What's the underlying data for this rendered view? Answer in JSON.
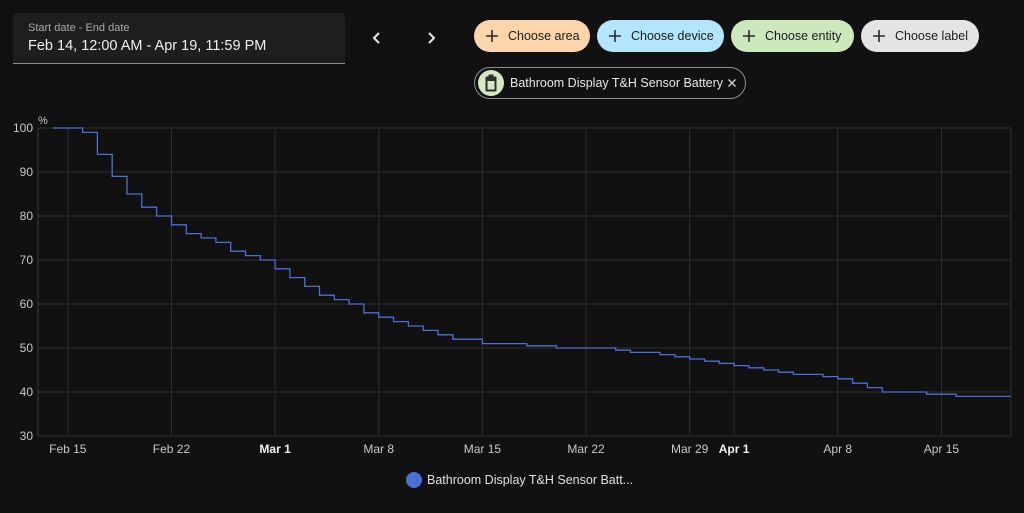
{
  "date_range": {
    "label": "Start date - End date",
    "value": "Feb 14, 12:00 AM - Apr 19, 11:59 PM"
  },
  "nav": {
    "prev_icon": "chevron-left-icon",
    "next_icon": "chevron-right-icon"
  },
  "chips": [
    {
      "label": "Choose area",
      "color": "#fdd5aa",
      "icon": "plus-icon"
    },
    {
      "label": "Choose device",
      "color": "#b3e5fc",
      "icon": "plus-icon"
    },
    {
      "label": "Choose entity",
      "color": "#cde8bc",
      "icon": "plus-icon"
    },
    {
      "label": "Choose label",
      "color": "#e4e4e4",
      "icon": "plus-icon"
    }
  ],
  "selected_entity": {
    "name": "Bathroom Display T&H Sensor Battery",
    "icon": "battery-icon",
    "remove_icon": "close-icon"
  },
  "chart_data": {
    "type": "line",
    "ylabel": "%",
    "ylim": [
      30,
      100
    ],
    "yticks": [
      30,
      40,
      50,
      60,
      70,
      80,
      90,
      100
    ],
    "x_start": "Feb 14",
    "x_end": "Apr 19",
    "xticks": [
      {
        "label": "Feb 15",
        "day": 1,
        "bold": false
      },
      {
        "label": "Feb 22",
        "day": 8,
        "bold": false
      },
      {
        "label": "Mar 1",
        "day": 15,
        "bold": true
      },
      {
        "label": "Mar 8",
        "day": 22,
        "bold": false
      },
      {
        "label": "Mar 15",
        "day": 29,
        "bold": false
      },
      {
        "label": "Mar 22",
        "day": 36,
        "bold": false
      },
      {
        "label": "Mar 29",
        "day": 43,
        "bold": false
      },
      {
        "label": "Apr 1",
        "day": 46,
        "bold": true
      },
      {
        "label": "Apr 8",
        "day": 53,
        "bold": false
      },
      {
        "label": "Apr 15",
        "day": 60,
        "bold": false
      }
    ],
    "grid": true,
    "line_color": "#4a6fd6",
    "series": [
      {
        "name": "Bathroom Display T&H Sensor Batt...",
        "x_days": [
          0,
          1,
          2,
          3,
          4,
          5,
          6,
          7,
          8,
          9,
          10,
          11,
          12,
          13,
          14,
          15,
          16,
          17,
          18,
          19,
          20,
          21,
          22,
          23,
          24,
          25,
          26,
          27,
          28,
          29,
          30,
          31,
          32,
          33,
          34,
          35,
          36,
          37,
          38,
          39,
          40,
          41,
          42,
          43,
          44,
          45,
          46,
          47,
          48,
          49,
          50,
          51,
          52,
          53,
          54,
          55,
          56,
          57,
          58,
          59,
          60,
          61,
          62,
          63,
          64.7
        ],
        "values": [
          100,
          100,
          99,
          94,
          89,
          85,
          82,
          80,
          78,
          76,
          75,
          74,
          72,
          71,
          70,
          68,
          66,
          64,
          62,
          61,
          60,
          58,
          57,
          56,
          55,
          54,
          53,
          52,
          52,
          51,
          51,
          51,
          50.5,
          50.5,
          50,
          50,
          50,
          50,
          49.5,
          49,
          49,
          48.5,
          48,
          47.5,
          47,
          46.5,
          46,
          45.5,
          45,
          44.5,
          44,
          44,
          43.5,
          43,
          42,
          41,
          40,
          40,
          40,
          39.5,
          39.5,
          39,
          39,
          39,
          39
        ]
      }
    ]
  }
}
